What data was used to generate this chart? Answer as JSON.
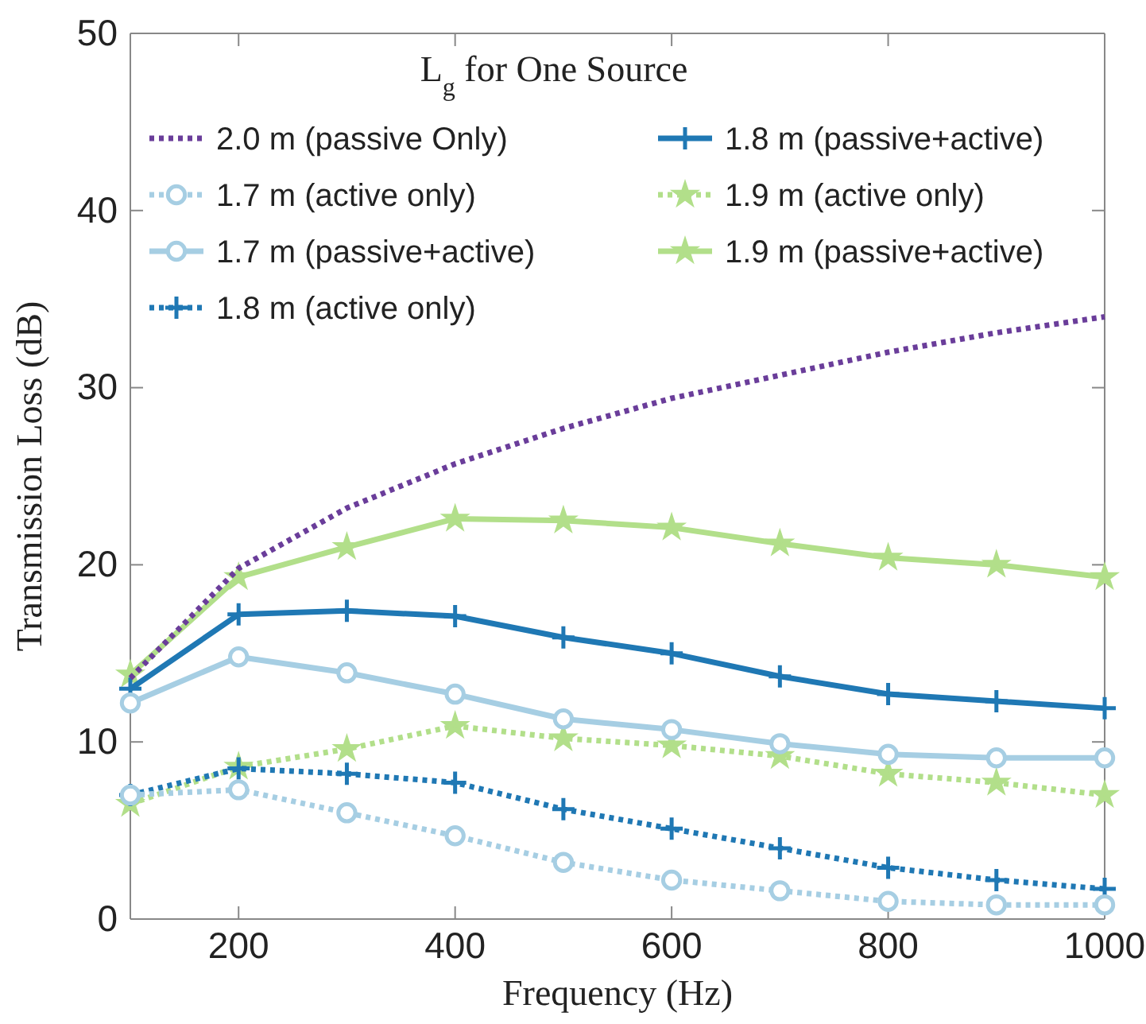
{
  "chart_data": {
    "type": "line",
    "legend_title": "L$_{g}$ for One Source",
    "xlabel": "Frequency (Hz)",
    "ylabel": "Transmission Loss (dB)",
    "x": [
      100,
      200,
      300,
      400,
      500,
      600,
      700,
      800,
      900,
      1000
    ],
    "xlim": [
      100,
      1000
    ],
    "xticks": [
      200,
      400,
      600,
      800,
      1000
    ],
    "ylim": [
      0,
      50
    ],
    "yticks": [
      0,
      10,
      20,
      30,
      40,
      50
    ],
    "grid": false,
    "legend": "top",
    "series": [
      {
        "name": "2.0 m (passive Only)",
        "color": "#6a3d9a",
        "marker": "none",
        "line_style": "dotted",
        "values": [
          13.6,
          19.8,
          23.2,
          25.7,
          27.7,
          29.4,
          30.7,
          32.0,
          33.1,
          34.0
        ]
      },
      {
        "name": "1.7 m (active only)",
        "color": "#a6cee3",
        "marker": "circle",
        "line_style": "dotted",
        "values": [
          7.0,
          7.3,
          6.0,
          4.7,
          3.2,
          2.2,
          1.6,
          1.0,
          0.8,
          0.8
        ]
      },
      {
        "name": "1.7 m (passive+active)",
        "color": "#a6cee3",
        "marker": "circle",
        "line_style": "solid",
        "values": [
          12.2,
          14.8,
          13.9,
          12.7,
          11.3,
          10.7,
          9.9,
          9.3,
          9.1,
          9.1
        ]
      },
      {
        "name": "1.8 m (active only)",
        "color": "#1f78b4",
        "marker": "cross",
        "line_style": "dotted",
        "values": [
          7.0,
          8.5,
          8.2,
          7.7,
          6.2,
          5.1,
          4.0,
          2.9,
          2.2,
          1.7
        ]
      },
      {
        "name": "1.8 m (passive+active)",
        "color": "#1f78b4",
        "marker": "cross",
        "line_style": "solid",
        "values": [
          13.0,
          17.2,
          17.4,
          17.1,
          15.9,
          15.0,
          13.7,
          12.7,
          12.3,
          11.9
        ]
      },
      {
        "name": "1.9 m (active only)",
        "color": "#b2df8a",
        "marker": "star",
        "line_style": "dotted",
        "values": [
          6.5,
          8.6,
          9.6,
          10.9,
          10.2,
          9.8,
          9.2,
          8.2,
          7.7,
          7.0
        ]
      },
      {
        "name": "1.9 m (passive+active)",
        "color": "#b2df8a",
        "marker": "star",
        "line_style": "solid",
        "values": [
          13.8,
          19.3,
          21.0,
          22.6,
          22.5,
          22.1,
          21.2,
          20.4,
          20.0,
          19.3
        ]
      }
    ]
  }
}
